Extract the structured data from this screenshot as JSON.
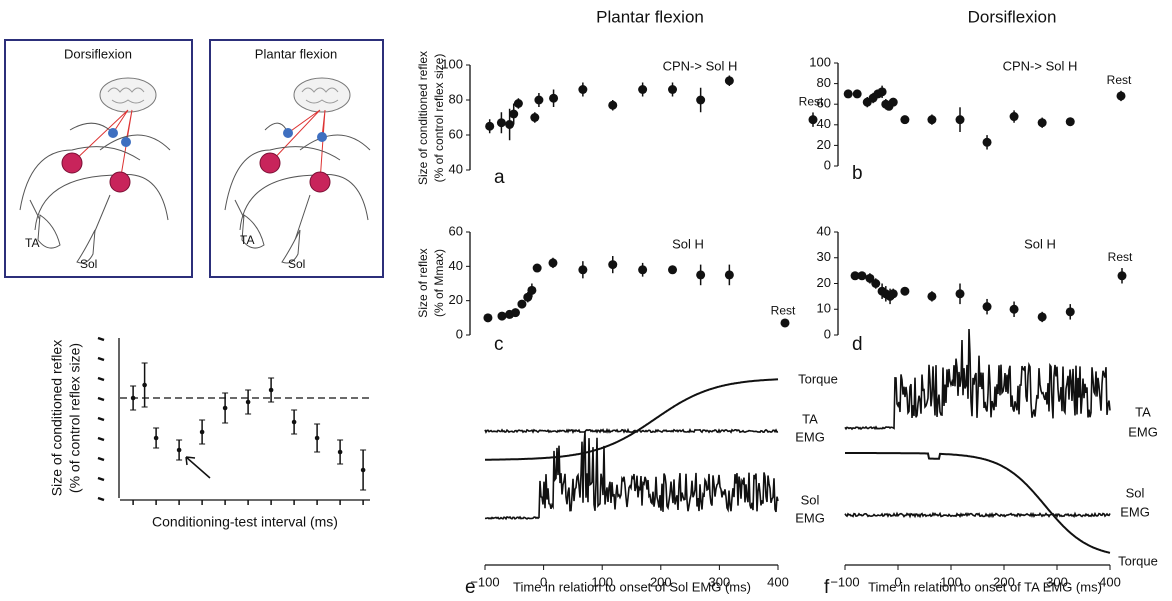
{
  "column_titles": [
    "Plantar flexion",
    "Dorsiflexion"
  ],
  "diagrams": [
    {
      "title": "Dorsiflexion",
      "labels": [
        "TA",
        "Sol"
      ]
    },
    {
      "title": "Plantar flexion",
      "labels": [
        "TA",
        "Sol"
      ]
    }
  ],
  "chart_data": [
    {
      "type": "errorbar",
      "ylabel": [
        "Size of conditioned reflex",
        "(% of control reflex size)"
      ],
      "xlabel": "Conditioning-test interval (ms)",
      "x": [
        0,
        0.5,
        1,
        2,
        3,
        4,
        5,
        6,
        7,
        8,
        9,
        10
      ],
      "values": [
        100,
        106.5,
        80,
        74,
        83,
        95,
        98,
        104,
        88,
        80,
        73,
        64
      ],
      "errors": [
        6,
        11,
        5,
        5,
        6,
        7.5,
        6,
        6,
        6,
        7,
        6,
        10
      ],
      "xlim": [
        -0.57,
        10.3
      ],
      "xticks": [
        0,
        1,
        2,
        3,
        4,
        5,
        6,
        7,
        8,
        9,
        10
      ],
      "ylim": [
        50,
        130
      ],
      "yticks": [
        50,
        60,
        70,
        80,
        90,
        100,
        110,
        120,
        130
      ],
      "reference": 100
    },
    {
      "type": "errorbar",
      "panel": "a",
      "annotation": "CPN-> Sol H",
      "ylabel": [
        "Size of conditioned reflex",
        "(% of control reflex size)"
      ],
      "x": [
        -92,
        -72,
        -58,
        -51,
        -43,
        -15,
        -8,
        17,
        67,
        118,
        169,
        220,
        268,
        317
      ],
      "values": [
        65,
        67,
        66,
        72,
        78,
        70,
        80,
        81,
        86,
        77,
        86,
        86,
        80,
        91
      ],
      "errors": [
        4,
        6,
        9,
        6,
        3,
        3,
        4,
        5,
        4,
        3,
        4,
        4,
        7,
        3
      ],
      "xlim": [
        -100,
        400
      ],
      "ylim": [
        40,
        100
      ],
      "yticks": [
        40,
        60,
        80,
        100
      ]
    },
    {
      "type": "errorbar",
      "panel": "b",
      "annotation": "CPN-> Sol H",
      "x": [
        -94,
        -77,
        -58,
        -47,
        -38,
        -30,
        -23,
        -17,
        -9,
        13,
        64,
        117,
        168,
        219,
        272,
        325
      ],
      "values": [
        70,
        70,
        62,
        66,
        70,
        72,
        60,
        58,
        62,
        45,
        45,
        45,
        23,
        48,
        42,
        43
      ],
      "errors": [
        4,
        4,
        5,
        5,
        4,
        6,
        5,
        4,
        4,
        3,
        5,
        12,
        7,
        6,
        5,
        4
      ],
      "rest": [
        {
          "label": "Rest",
          "value": 45,
          "error": 7,
          "side": "left"
        },
        {
          "label": "Rest",
          "value": 68,
          "error": 5,
          "side": "right"
        }
      ],
      "xlim": [
        -100,
        400
      ],
      "ylim": [
        0,
        100
      ],
      "yticks": [
        0,
        20,
        40,
        60,
        80,
        100
      ]
    },
    {
      "type": "errorbar",
      "panel": "c",
      "annotation": "Sol H",
      "ylabel": [
        "Size of reflex",
        "(% of Mmax)"
      ],
      "x": [
        -95,
        -71,
        -58,
        -48,
        -37,
        -27,
        -20,
        -11,
        16,
        67,
        118,
        169,
        220,
        268,
        317
      ],
      "values": [
        10,
        11,
        12,
        13,
        18,
        22,
        26,
        39,
        42,
        38,
        41,
        38,
        38,
        35,
        35
      ],
      "errors": [
        1,
        1,
        2,
        1,
        2,
        3,
        4,
        2,
        3,
        5,
        5,
        4,
        2,
        6,
        6
      ],
      "rest": [
        {
          "label": "Rest",
          "value": 7,
          "error": 1,
          "side": "right"
        }
      ],
      "xlim": [
        -100,
        400
      ],
      "ylim": [
        0,
        60
      ],
      "yticks": [
        0,
        20,
        40,
        60
      ]
    },
    {
      "type": "errorbar",
      "panel": "d",
      "annotation": "Sol H",
      "x": [
        -81,
        -68,
        -53,
        -42,
        -30,
        -23,
        -15,
        -9,
        13,
        64,
        117,
        168,
        219,
        272,
        325
      ],
      "values": [
        23,
        23,
        22,
        20,
        17,
        16,
        15,
        16,
        17,
        15,
        16,
        11,
        10,
        7,
        9
      ],
      "errors": [
        1,
        1,
        2,
        2,
        3,
        3,
        3,
        2,
        1,
        2,
        4,
        3,
        3,
        2,
        3
      ],
      "rest": [
        {
          "label": "Rest",
          "value": 23,
          "error": 3,
          "side": "right"
        }
      ],
      "xlim": [
        -100,
        400
      ],
      "ylim": [
        0,
        40
      ],
      "yticks": [
        0,
        10,
        20,
        30,
        40
      ]
    },
    {
      "type": "traces",
      "panel": "e",
      "xlabel": "Time in relation to onset of Sol EMG (ms)",
      "xlim": [
        -100,
        400
      ],
      "xticks": [
        {
          "value": -100,
          "label": "−100"
        },
        0,
        100,
        200,
        300,
        400
      ],
      "traces": [
        {
          "label_lines": [
            "Torque"
          ]
        },
        {
          "label_lines": [
            "TA",
            "EMG"
          ]
        },
        {
          "label_lines": [
            "Sol",
            "EMG"
          ]
        }
      ]
    },
    {
      "type": "traces",
      "panel": "f",
      "xlabel": "Time in relation to onset of TA EMG (ms)",
      "xlim": [
        -100,
        400
      ],
      "xticks": [
        {
          "value": -100,
          "label": "−100"
        },
        0,
        100,
        200,
        300,
        400
      ],
      "traces": [
        {
          "label_lines": [
            "TA",
            "EMG"
          ]
        },
        {
          "label_lines": [
            "Sol",
            "EMG"
          ]
        },
        {
          "label_lines": [
            "Torque"
          ]
        }
      ]
    }
  ]
}
